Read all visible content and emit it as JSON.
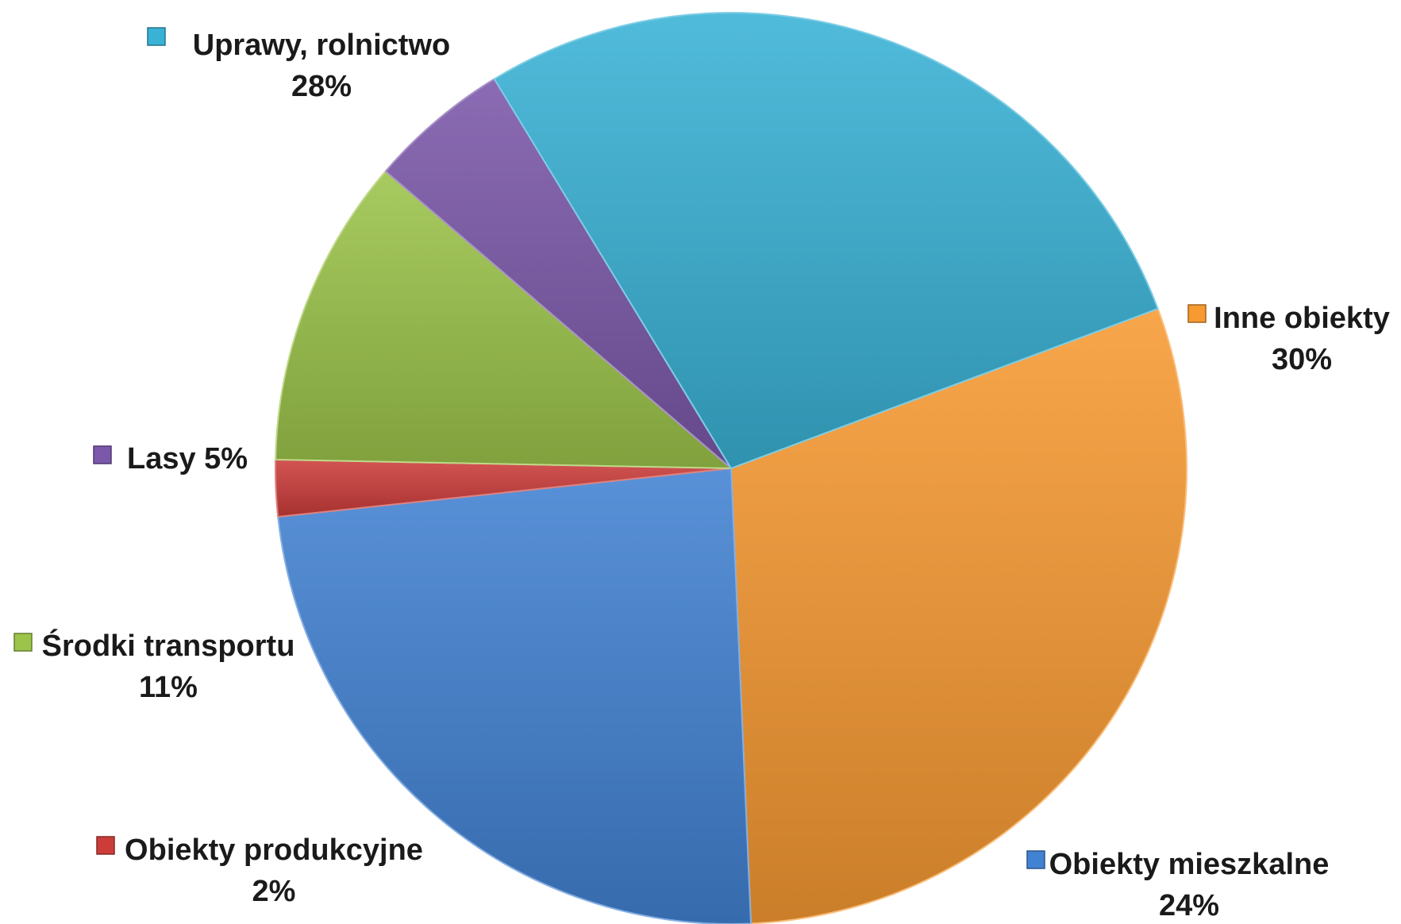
{
  "chart_data": {
    "type": "pie",
    "title": "",
    "slices": [
      {
        "label": "Inne obiekty",
        "percent_label": "30%",
        "value": 30,
        "color": "#F79A32"
      },
      {
        "label": "Obiekty mieszkalne",
        "percent_label": "24%",
        "value": 24,
        "color": "#4282D3"
      },
      {
        "label": "Obiekty produkcyjne",
        "percent_label": "2%",
        "value": 2,
        "color": "#CC3D3A"
      },
      {
        "label": "Środki transportu",
        "percent_label": "11%",
        "value": 11,
        "color": "#9CC44A"
      },
      {
        "label": "Lasy 5%",
        "percent_label": "",
        "value": 5,
        "color": "#7B58AA"
      },
      {
        "label": "Uprawy, rolnictwo",
        "percent_label": "28%",
        "value": 28,
        "color": "#39B2D6"
      }
    ]
  }
}
